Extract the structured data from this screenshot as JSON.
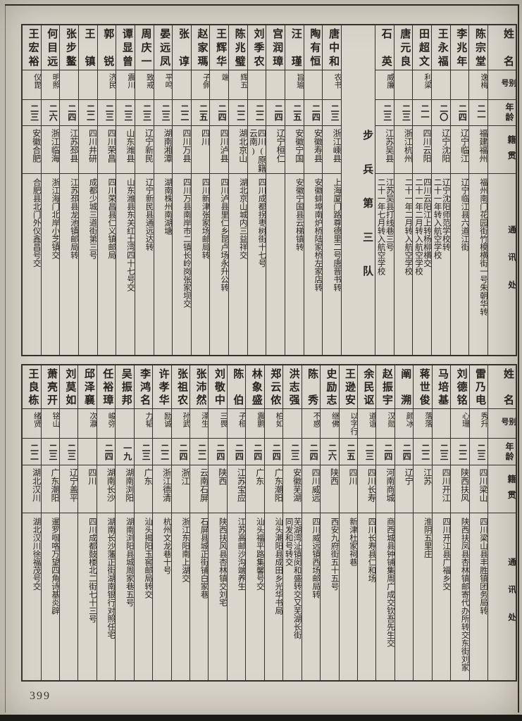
{
  "page": {
    "number": "399"
  },
  "colors": {
    "paper": "#d8d4c9",
    "ink": "#26231e",
    "line": "#35322b"
  },
  "headers": {
    "name": "姓名",
    "alias": "别号",
    "age": "年龄",
    "native": "籍贯",
    "address": "通讯处"
  },
  "top_table": {
    "columns": [
      {
        "name": "陈宗堂",
        "alias": "逸梅",
        "age": "二一",
        "native": "福建福州",
        "address": [
          "福州南门花园街竹模横街一号朱朝华转"
        ]
      },
      {
        "name": "李兆年",
        "alias": "",
        "age": "二四",
        "native": "辽宁临江",
        "address": [
          "辽宁临江县六道江街"
        ]
      },
      {
        "name": "王永福",
        "alias": "",
        "age": "二〇",
        "native": "辽宁沈阳",
        "address": [
          "辽宁沈阳师范学校转",
          "二十一年转入航空学校"
        ]
      },
      {
        "name": "田超文",
        "alias": "利梁",
        "age": "二一",
        "native": "四川云阳",
        "address": [
          "四川云阳江上转杨柳横交",
          "二十一年二月转入航空学校"
        ]
      },
      {
        "name": "唐元良",
        "alias": "",
        "age": "二三",
        "native": "浙江杭州",
        "address": [
          "二十一年二月转入航空学校"
        ]
      },
      {
        "name": "石英",
        "alias": "威廉",
        "age": "二三",
        "native": "江苏吴县",
        "address": [
          "江苏吴县打线巷三号",
          "二十一年七月转入航空学校"
        ]
      },
      {
        "divider": "步兵第三队"
      },
      {
        "name": "唐中和",
        "alias": "农书",
        "age": "二三",
        "native": "浙江嵊县",
        "address": [
          "上海厦门路尊德里二号唐晋书转"
        ]
      },
      {
        "name": "陶有恒",
        "alias": "",
        "age": "二四",
        "native": "安徽寿县",
        "address": [
          "安徽蚌埠南炉桥陆家桥左家店转"
        ]
      },
      {
        "name": "汪瑾",
        "alias": "旨瑜",
        "age": "二五",
        "native": "安徽宁国",
        "address": [
          "安徽宁国县云梯镇转"
        ]
      },
      {
        "name": "宫润璋",
        "alias": "",
        "age": "二四",
        "native": "辽宁桓仁",
        "address": []
      },
      {
        "name": "刘季农",
        "alias": "",
        "age": "二二",
        "native": "四川(原籍云南)",
        "address": [
          "四川成都拐枣树街十七号"
        ]
      },
      {
        "name": "陈兆璧",
        "alias": "辉五",
        "age": "二二",
        "native": "湖北京山",
        "address": [
          "湖北京山城内三益祥交"
        ]
      },
      {
        "name": "王辉华",
        "alias": "端",
        "age": "二四",
        "native": "四川泸县",
        "address": [
          "四川泸县里仁乡昆卢场永升公转"
        ]
      },
      {
        "name": "赵家瑪",
        "alias": "子佩",
        "age": "二五",
        "native": "四川",
        "address": [
          "四川新津张家场邮局转"
        ]
      },
      {
        "name": "张谆",
        "alias": "",
        "age": "二二",
        "native": "四川万县",
        "address": [
          "四川万县南岸市二镇长岭岗张家坝交"
        ]
      },
      {
        "name": "晏远凤",
        "alias": "平鸣",
        "age": "二三",
        "native": "湖南湘潭",
        "address": [
          "湖南株州南湖塘"
        ]
      },
      {
        "name": "周庆一",
        "alias": "致戒",
        "age": "二三",
        "native": "辽宁新民",
        "address": [
          "辽宁新民县通远达转"
        ]
      },
      {
        "name": "谭显曾",
        "alias": "震川",
        "age": "二三",
        "native": "山东潍县",
        "address": [
          "山东潍县东关红土湾四十七号交"
        ]
      },
      {
        "name": "郭锐",
        "alias": "济民",
        "age": "二三",
        "native": "四川荣昌",
        "address": [
          "四川荣昌县仁义镇邮局"
        ]
      },
      {
        "name": "王镇",
        "alias": "",
        "age": "二二",
        "native": "四川井研",
        "address": [
          "成都少城三道街第三号"
        ]
      },
      {
        "name": "张步鳌",
        "alias": "",
        "age": "二四",
        "native": "江苏邳县",
        "address": [
          "江苏邳县龙池镇邮局转"
        ]
      },
      {
        "name": "何目远",
        "alias": "明照",
        "age": "二六",
        "native": "浙江临海",
        "address": [
          "浙江海门北岸小芝镇交"
        ]
      },
      {
        "name": "王宏裕",
        "alias": "仪毘",
        "age": "二三",
        "native": "安徽合肥",
        "address": [
          "合肥县北门外仪鑫昌号交"
        ]
      }
    ]
  },
  "bottom_table": {
    "columns": [
      {
        "name": "雷乃电",
        "alias": "秀升",
        "age": "二三",
        "native": "四川梁山",
        "address": [
          "四川梁山县丰胜镇团务局转"
        ]
      },
      {
        "name": "刘德铭",
        "alias": "心珊",
        "age": "二二",
        "native": "陕西扶风",
        "address": [
          "陕西扶凤县杏林镇邮寄代办所转交东街刘家"
        ]
      },
      {
        "name": "马培基",
        "alias": "",
        "age": "二三",
        "native": "四川开江",
        "address": [
          "四川开江县广福乡交"
        ]
      },
      {
        "name": "蒋世俊",
        "alias": "落落",
        "age": "二二",
        "native": "江苏",
        "address": [
          "淮阴五里庄"
        ]
      },
      {
        "name": "阐溯",
        "alias": "颜冰",
        "age": "二四",
        "native": "辽宁",
        "address": []
      },
      {
        "name": "赵振宇",
        "alias": "汉勋",
        "age": "二四",
        "native": "河南商城",
        "address": [
          "商西城县钟铺集周广成交钦吾先生交"
        ]
      },
      {
        "name": "余民讴",
        "alias": "道谊",
        "age": "二三",
        "native": "四川长寿",
        "address": [
          "四川长寿县仁和场"
        ]
      },
      {
        "name": "王逊安",
        "alias": "以字行",
        "age": "二五",
        "native": "四川",
        "address": [
          "新津杜家祠巷"
        ]
      },
      {
        "name": "史励志",
        "alias": "继佛",
        "age": "二六",
        "native": "陕西",
        "address": [
          "西安九府街五十五号"
        ]
      },
      {
        "name": "陈秀",
        "alias": "不惑",
        "age": "二四",
        "native": "四川威远",
        "address": [
          "四川威远镇西场邮局转"
        ]
      },
      {
        "name": "洪志强",
        "alias": "",
        "age": "二三",
        "native": "安徽芜湖",
        "address": [
          "芜湖湾沚镇闵和盛转交又芜湖长街",
          "同发和号转交"
        ]
      },
      {
        "name": "郑云侬",
        "alias": "柏如",
        "age": "二四",
        "native": "广东潮阳",
        "address": [
          "汕头潮阳县成田乡光华书局"
        ]
      },
      {
        "name": "林象盛",
        "alias": "震鹏",
        "age": "二四",
        "native": "广东",
        "address": [
          "汕头福平路集馨号交"
        ]
      },
      {
        "name": "陈伯",
        "alias": "子桓",
        "age": "二四",
        "native": "江苏宝应",
        "address": [
          "江苏高邮沙沟端养生"
        ]
      },
      {
        "name": "刘敬中",
        "alias": "三畏",
        "age": "二四",
        "native": "陕西",
        "address": [
          "陕西扶风县杏林镇交刘宅"
        ]
      },
      {
        "name": "张沛然",
        "alias": "泽生",
        "age": "二二",
        "native": "云南石屏",
        "address": [
          "石屏县城正街铺白家巷"
        ]
      },
      {
        "name": "张祖农",
        "alias": "孙武",
        "age": "二四",
        "native": "浙江",
        "address": [
          "浙江东阳南上湖交"
        ]
      },
      {
        "name": "许孝华",
        "alias": "励诚",
        "age": "二二",
        "native": "浙江德清",
        "address": [
          "杭州文龙巷十号"
        ]
      },
      {
        "name": "李鸿名",
        "alias": "力韬",
        "age": "二三",
        "native": "广东",
        "address": [
          "汕头揭阳玉窖邮局转交"
        ]
      },
      {
        "name": "吴振邦",
        "alias": "",
        "age": "一九",
        "native": "湖南浏阳",
        "address": [
          "湖南浏阳县城周家巷五号"
        ]
      },
      {
        "name": "任裕璋",
        "alias": "峻弥",
        "age": "二四",
        "native": "湖南长沙",
        "address": [
          "湖南长沙藩正街湖南银行对照任宅"
        ]
      },
      {
        "name": "邱泽襄",
        "alias": "次瀛",
        "age": "",
        "native": "四川",
        "address": [
          "四川成都鼓楼北二街七十三号"
        ]
      },
      {
        "name": "刘莫如",
        "alias": "",
        "age": "二三",
        "native": "辽宁盖平",
        "address": []
      },
      {
        "name": "萧亮开",
        "alias": "铭山",
        "age": "二三",
        "native": "广东潮阳",
        "address": [
          "暹罗啯咯万望四角诗基炎辟"
        ]
      },
      {
        "name": "王良栋",
        "alias": "绪贤",
        "age": "二二",
        "native": "湖北汉川",
        "address": [
          "湖北汉川徐福茂号交"
        ]
      }
    ]
  }
}
